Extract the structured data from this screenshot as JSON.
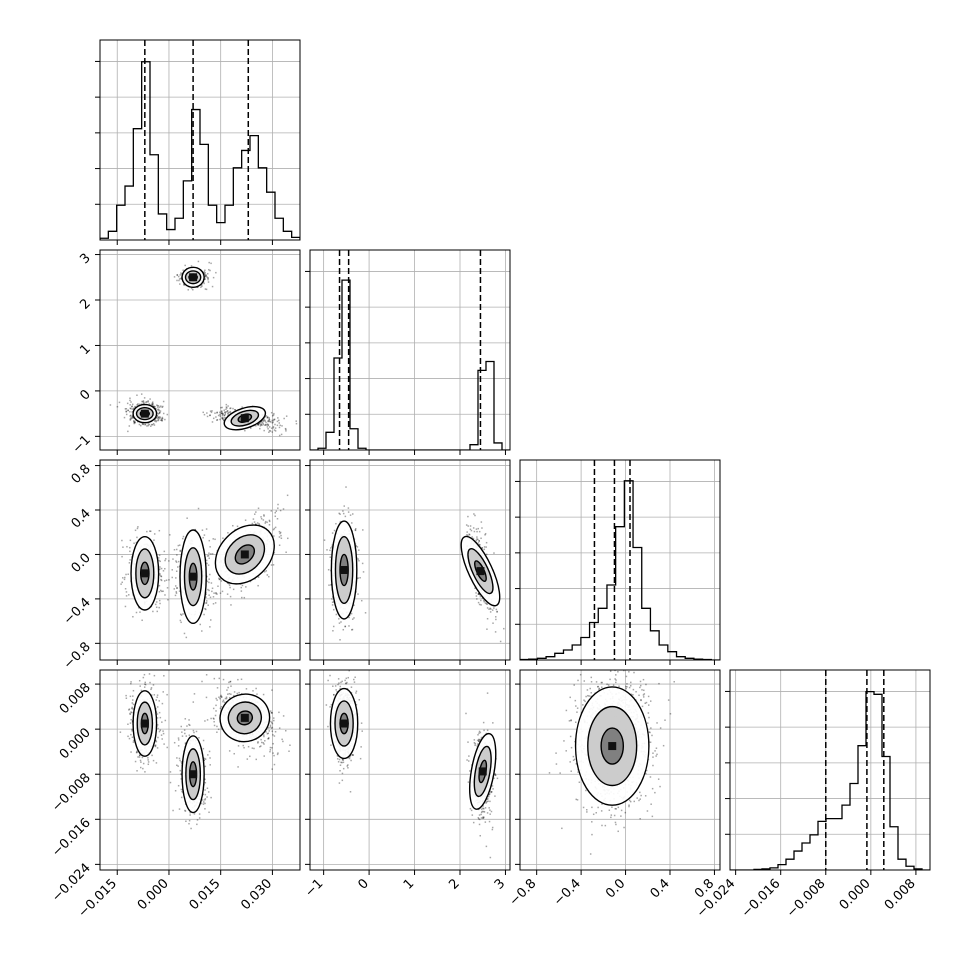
{
  "chart_data": {
    "type": "corner",
    "grid": true,
    "parameters": [
      {
        "range": [
          -0.02,
          0.038
        ],
        "ticks": [
          "-0.015",
          "0.000",
          "0.015",
          "0.030"
        ],
        "tick_values": [
          -0.015,
          0.0,
          0.015,
          0.03
        ],
        "quantiles": [
          -0.007,
          0.007,
          0.023
        ]
      },
      {
        "range": [
          -1.3,
          3.1
        ],
        "ticks": [
          "-1",
          "0",
          "1",
          "2",
          "3"
        ],
        "tick_values": [
          -1,
          0,
          1,
          2,
          3
        ],
        "quantiles": [
          -0.65,
          -0.45,
          2.45
        ]
      },
      {
        "range": [
          -0.95,
          0.85
        ],
        "ticks": [
          "-0.8",
          "-0.4",
          "0.0",
          "0.4",
          "0.8"
        ],
        "tick_values": [
          -0.8,
          -0.4,
          0.0,
          0.4,
          0.8
        ],
        "quantiles": [
          -0.28,
          -0.1,
          0.04
        ]
      },
      {
        "range": [
          -0.025,
          0.0105
        ],
        "ticks": [
          "-0.024",
          "-0.016",
          "-0.008",
          "0.000",
          "0.008"
        ],
        "tick_values": [
          -0.024,
          -0.016,
          -0.008,
          0.0,
          0.008
        ],
        "quantiles": [
          -0.008,
          -0.0007,
          0.0023
        ]
      }
    ],
    "histograms": [
      {
        "edges_range": [
          -0.02,
          0.038
        ],
        "counts": [
          2,
          10,
          40,
          62,
          128,
          205,
          98,
          30,
          12,
          25,
          68,
          150,
          110,
          40,
          20,
          40,
          83,
          103,
          120,
          83,
          55,
          25,
          10,
          3
        ],
        "ymax": 230
      },
      {
        "edges_range": [
          -1.3,
          3.1
        ],
        "counts": [
          0,
          1,
          10,
          52,
          96,
          12,
          1,
          0,
          0,
          0,
          0,
          0,
          0,
          0,
          0,
          0,
          0,
          0,
          0,
          0,
          3,
          45,
          50,
          4,
          0
        ],
        "ymax": 113
      },
      {
        "edges_range": [
          -0.95,
          0.85
        ],
        "counts": [
          0.5,
          1,
          2,
          4,
          8,
          12,
          18,
          27,
          45,
          62,
          90,
          160,
          215,
          135,
          62,
          35,
          18,
          10,
          4,
          2,
          1,
          0.5,
          0
        ],
        "ymax": 240
      },
      {
        "edges_range": [
          -0.025,
          0.0105
        ],
        "counts": [
          0,
          0,
          0,
          1,
          2,
          4,
          10,
          20,
          35,
          50,
          65,
          90,
          95,
          95,
          120,
          160,
          230,
          330,
          325,
          210,
          80,
          20,
          7,
          2,
          0
        ],
        "ymax": 370
      }
    ],
    "scatter_pairs": [
      {
        "x": 0,
        "y": 1,
        "clusters": [
          {
            "c": [
              -0.007,
              -0.5
            ],
            "s": [
              0.0025,
              0.13
            ],
            "n": 380,
            "r": 0
          },
          {
            "c": [
              0.007,
              2.5
            ],
            "s": [
              0.0021,
              0.11
            ],
            "n": 300,
            "r": 0
          },
          {
            "c": [
              0.023,
              -0.6
            ],
            "s": [
              0.0045,
              0.11
            ],
            "n": 420,
            "r": -0.45
          }
        ],
        "contours": [
          {
            "cx": -0.007,
            "cy": -0.5,
            "rx": [
              0.0034,
              0.0024,
              0.0013
            ],
            "ry": [
              0.2,
              0.13,
              0.07
            ],
            "rot": 0
          },
          {
            "cx": 0.007,
            "cy": 2.5,
            "rx": [
              0.0032,
              0.0022,
              0.0012
            ],
            "ry": [
              0.22,
              0.14,
              0.07
            ],
            "rot": 0
          },
          {
            "cx": 0.022,
            "cy": -0.6,
            "rx": [
              0.0062,
              0.0041,
              0.002
            ],
            "ry": [
              0.22,
              0.15,
              0.08
            ],
            "rot": 18
          }
        ]
      },
      {
        "x": 0,
        "y": 2,
        "clusters": [
          {
            "c": [
              -0.007,
              -0.15
            ],
            "s": [
              0.0028,
              0.17
            ],
            "n": 350,
            "r": 0
          },
          {
            "c": [
              0.007,
              -0.18
            ],
            "s": [
              0.0025,
              0.2
            ],
            "n": 350,
            "r": 0
          },
          {
            "c": [
              0.022,
              0.0
            ],
            "s": [
              0.005,
              0.18
            ],
            "n": 400,
            "r": 0.6
          }
        ],
        "contours": [
          {
            "cx": -0.007,
            "cy": -0.17,
            "rx": [
              0.004,
              0.0026,
              0.0012
            ],
            "ry": [
              0.33,
              0.22,
              0.1
            ],
            "rot": 0
          },
          {
            "cx": 0.007,
            "cy": -0.2,
            "rx": [
              0.0038,
              0.0025,
              0.0011
            ],
            "ry": [
              0.42,
              0.26,
              0.12
            ],
            "rot": 0
          },
          {
            "cx": 0.022,
            "cy": 0.0,
            "rx": [
              0.0072,
              0.0048,
              0.0022
            ],
            "ry": [
              0.3,
              0.2,
              0.1
            ],
            "rot": -45
          }
        ]
      },
      {
        "x": 1,
        "y": 2,
        "clusters": [
          {
            "c": [
              -0.55,
              -0.15
            ],
            "s": [
              0.14,
              0.2
            ],
            "n": 650,
            "r": 0
          },
          {
            "c": [
              2.45,
              -0.15
            ],
            "s": [
              0.13,
              0.18
            ],
            "n": 450,
            "r": -0.6
          }
        ],
        "contours": [
          {
            "cx": -0.55,
            "cy": -0.14,
            "rx": [
              0.28,
              0.19,
              0.09
            ],
            "ry": [
              0.44,
              0.3,
              0.14
            ],
            "rot": 0
          },
          {
            "cx": 2.45,
            "cy": -0.15,
            "rx": [
              0.26,
              0.17,
              0.08
            ],
            "ry": [
              0.34,
              0.22,
              0.1
            ],
            "rot": 25
          }
        ]
      },
      {
        "x": 0,
        "y": 3,
        "clusters": [
          {
            "c": [
              -0.007,
              0.001
            ],
            "s": [
              0.0023,
              0.0035
            ],
            "n": 380,
            "r": 0
          },
          {
            "c": [
              0.007,
              -0.008
            ],
            "s": [
              0.0021,
              0.004
            ],
            "n": 350,
            "r": 0
          },
          {
            "c": [
              0.022,
              0.002
            ],
            "s": [
              0.005,
              0.003
            ],
            "n": 420,
            "r": -0.5
          }
        ],
        "contours": [
          {
            "cx": -0.007,
            "cy": 0.001,
            "rx": [
              0.0034,
              0.0022,
              0.001
            ],
            "ry": [
              0.0058,
              0.0038,
              0.0018
            ],
            "rot": 0
          },
          {
            "cx": 0.007,
            "cy": -0.008,
            "rx": [
              0.0032,
              0.0021,
              0.001
            ],
            "ry": [
              0.0068,
              0.0045,
              0.0022
            ],
            "rot": 0
          },
          {
            "cx": 0.022,
            "cy": 0.002,
            "rx": [
              0.0072,
              0.0048,
              0.0022
            ],
            "ry": [
              0.0042,
              0.0028,
              0.0012
            ],
            "rot": 18
          }
        ]
      },
      {
        "x": 1,
        "y": 3,
        "clusters": [
          {
            "c": [
              -0.55,
              0.001
            ],
            "s": [
              0.13,
              0.0035
            ],
            "n": 650,
            "r": 0
          },
          {
            "c": [
              2.5,
              -0.008
            ],
            "s": [
              0.12,
              0.004
            ],
            "n": 450,
            "r": 0
          }
        ],
        "contours": [
          {
            "cx": -0.55,
            "cy": 0.001,
            "rx": [
              0.3,
              0.2,
              0.09
            ],
            "ry": [
              0.0062,
              0.004,
              0.0018
            ],
            "rot": 0
          },
          {
            "cx": 2.5,
            "cy": -0.0075,
            "rx": [
              0.25,
              0.16,
              0.07
            ],
            "ry": [
              0.0068,
              0.0045,
              0.002
            ],
            "rot": -10
          }
        ]
      },
      {
        "x": 2,
        "y": 3,
        "clusters": [
          {
            "c": [
              -0.12,
              -0.002
            ],
            "s": [
              0.17,
              0.006
            ],
            "n": 1100,
            "r": 0
          }
        ],
        "contours": [
          {
            "cx": -0.12,
            "cy": -0.003,
            "rx": [
              0.33,
              0.22,
              0.1
            ],
            "ry": [
              0.0105,
              0.007,
              0.0032
            ],
            "rot": 0
          }
        ]
      }
    ]
  }
}
